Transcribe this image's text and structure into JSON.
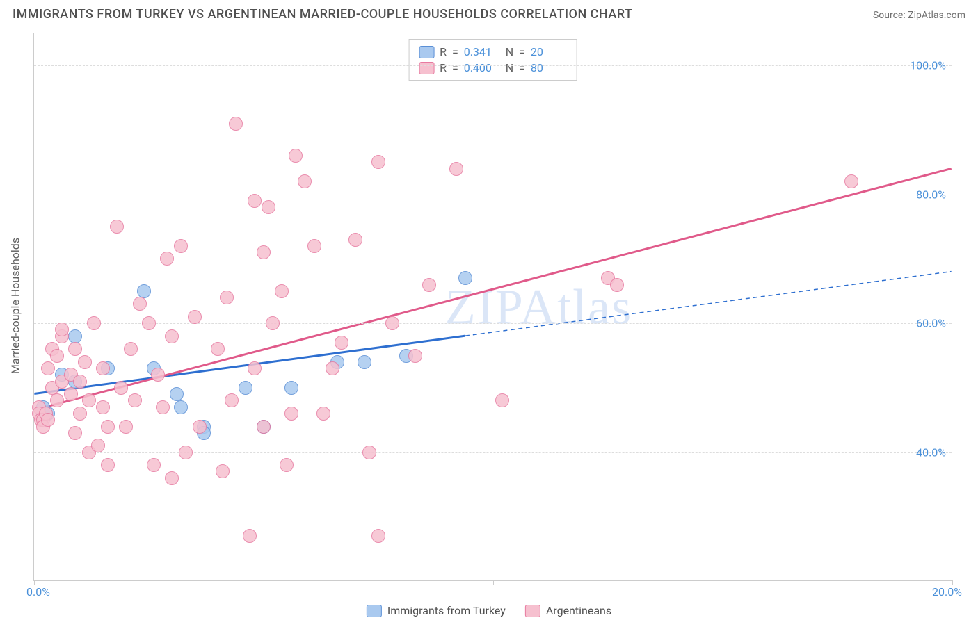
{
  "header": {
    "title": "IMMIGRANTS FROM TURKEY VS ARGENTINEAN MARRIED-COUPLE HOUSEHOLDS CORRELATION CHART",
    "source": "Source: ZipAtlas.com"
  },
  "watermark": "ZIPAtlas",
  "chart": {
    "type": "scatter",
    "y_axis_title": "Married-couple Households",
    "background_color": "#ffffff",
    "grid_color": "#dddddd",
    "axis_color": "#cccccc",
    "x_range": [
      0,
      20
    ],
    "y_range": [
      20,
      105
    ],
    "x_ticks": [
      0,
      5,
      10,
      15,
      20
    ],
    "x_tick_labels": {
      "0": "0.0%",
      "20": "20.0%"
    },
    "y_ticks": [
      40,
      60,
      80,
      100
    ],
    "y_tick_labels": {
      "40": "40.0%",
      "60": "60.0%",
      "80": "80.0%",
      "100": "100.0%"
    },
    "tick_label_color": "#4a90d9",
    "tick_fontsize": 16,
    "point_radius": 10,
    "point_fill_opacity": 0.35,
    "point_stroke_width": 1.5,
    "series": [
      {
        "name": "Immigrants from Turkey",
        "color_fill": "#a9c9ef",
        "color_stroke": "#5a8fd6",
        "line_color": "#2e6fd0",
        "line_width": 3,
        "dash_extrapolate": "6,5",
        "R": "0.341",
        "N": "20",
        "trend": {
          "x1": 0,
          "y1": 49,
          "x2": 9.4,
          "y2": 58,
          "x_ext": 20,
          "y_ext": 68
        },
        "points": [
          [
            0.2,
            47
          ],
          [
            0.2,
            46
          ],
          [
            0.3,
            46
          ],
          [
            0.6,
            52
          ],
          [
            0.9,
            51
          ],
          [
            0.9,
            58
          ],
          [
            1.6,
            53
          ],
          [
            2.4,
            65
          ],
          [
            2.6,
            53
          ],
          [
            3.1,
            49
          ],
          [
            3.2,
            47
          ],
          [
            3.7,
            44
          ],
          [
            3.7,
            43
          ],
          [
            4.6,
            50
          ],
          [
            5.0,
            44
          ],
          [
            5.6,
            50
          ],
          [
            6.6,
            54
          ],
          [
            7.2,
            54
          ],
          [
            8.1,
            55
          ],
          [
            9.4,
            67
          ]
        ]
      },
      {
        "name": "Argentineans",
        "color_fill": "#f6c0cf",
        "color_stroke": "#e77aa0",
        "line_color": "#e05a8a",
        "line_width": 3,
        "dash_extrapolate": null,
        "R": "0.400",
        "N": "80",
        "trend": {
          "x1": 0,
          "y1": 46.5,
          "x2": 20,
          "y2": 84,
          "x_ext": 20,
          "y_ext": 84
        },
        "points": [
          [
            0.1,
            47
          ],
          [
            0.1,
            46
          ],
          [
            0.15,
            45
          ],
          [
            0.2,
            45
          ],
          [
            0.2,
            44
          ],
          [
            0.25,
            46
          ],
          [
            0.3,
            45
          ],
          [
            0.3,
            53
          ],
          [
            0.4,
            56
          ],
          [
            0.4,
            50
          ],
          [
            0.5,
            48
          ],
          [
            0.5,
            55
          ],
          [
            0.6,
            51
          ],
          [
            0.6,
            58
          ],
          [
            0.6,
            59
          ],
          [
            0.8,
            52
          ],
          [
            0.8,
            49
          ],
          [
            0.9,
            56
          ],
          [
            0.9,
            43
          ],
          [
            1.0,
            51
          ],
          [
            1.0,
            46
          ],
          [
            1.1,
            54
          ],
          [
            1.2,
            48
          ],
          [
            1.2,
            40
          ],
          [
            1.3,
            60
          ],
          [
            1.4,
            41
          ],
          [
            1.5,
            47
          ],
          [
            1.5,
            53
          ],
          [
            1.6,
            38
          ],
          [
            1.6,
            44
          ],
          [
            1.8,
            75
          ],
          [
            1.9,
            50
          ],
          [
            2.0,
            44
          ],
          [
            2.1,
            56
          ],
          [
            2.2,
            48
          ],
          [
            2.3,
            63
          ],
          [
            2.5,
            60
          ],
          [
            2.6,
            38
          ],
          [
            2.7,
            52
          ],
          [
            2.8,
            47
          ],
          [
            2.9,
            70
          ],
          [
            3.0,
            58
          ],
          [
            3.0,
            36
          ],
          [
            3.2,
            72
          ],
          [
            3.3,
            40
          ],
          [
            3.5,
            61
          ],
          [
            3.6,
            44
          ],
          [
            4.0,
            56
          ],
          [
            4.1,
            37
          ],
          [
            4.2,
            64
          ],
          [
            4.3,
            48
          ],
          [
            4.4,
            91
          ],
          [
            4.7,
            27
          ],
          [
            4.8,
            53
          ],
          [
            4.8,
            79
          ],
          [
            5.0,
            44
          ],
          [
            5.0,
            71
          ],
          [
            5.1,
            78
          ],
          [
            5.2,
            60
          ],
          [
            5.4,
            65
          ],
          [
            5.5,
            38
          ],
          [
            5.6,
            46
          ],
          [
            5.7,
            86
          ],
          [
            5.9,
            82
          ],
          [
            6.1,
            72
          ],
          [
            6.3,
            46
          ],
          [
            6.5,
            53
          ],
          [
            6.7,
            57
          ],
          [
            7.0,
            73
          ],
          [
            7.3,
            40
          ],
          [
            7.5,
            85
          ],
          [
            7.5,
            27
          ],
          [
            7.8,
            60
          ],
          [
            8.3,
            55
          ],
          [
            8.6,
            66
          ],
          [
            9.2,
            84
          ],
          [
            10.2,
            48
          ],
          [
            12.5,
            67
          ],
          [
            12.7,
            66
          ],
          [
            17.8,
            82
          ]
        ]
      }
    ],
    "legend_box": {
      "border_color": "#cccccc",
      "R_label": "R",
      "N_label": "N",
      "equals": "="
    },
    "bottom_legend": [
      {
        "swatch": 0,
        "label": "Immigrants from Turkey"
      },
      {
        "swatch": 1,
        "label": "Argentineans"
      }
    ]
  }
}
